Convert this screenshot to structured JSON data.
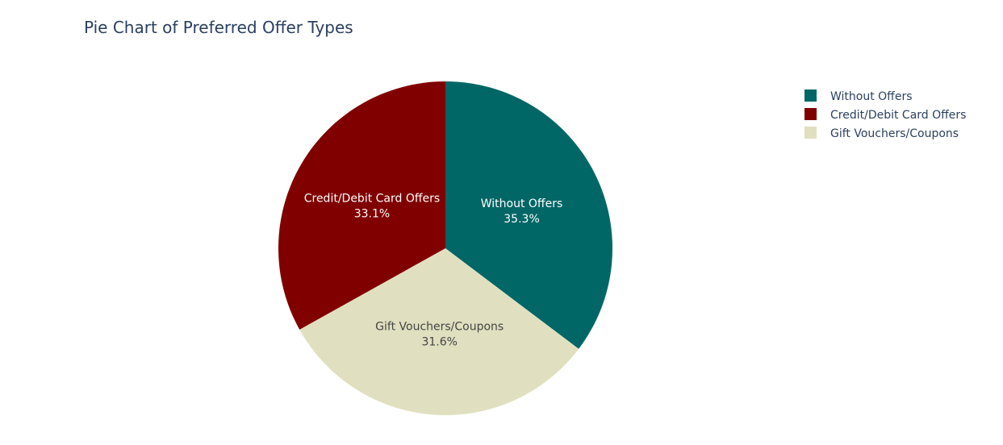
{
  "chart_data": {
    "type": "pie",
    "title": "Pie Chart of Preferred Offer Types",
    "slices": [
      {
        "label": "Without Offers",
        "value": 35.3,
        "percent_label": "35.3%",
        "color": "#006666",
        "text_color": "#ffffff"
      },
      {
        "label": "Gift Vouchers/Coupons",
        "value": 31.6,
        "percent_label": "31.6%",
        "color": "#E0E0C0",
        "text_color": "#444444"
      },
      {
        "label": "Credit/Debit Card Offers",
        "value": 33.1,
        "percent_label": "33.1%",
        "color": "#800000",
        "text_color": "#ffffff"
      }
    ],
    "legend": {
      "placement": "top-right",
      "entries": [
        {
          "label": "Without Offers",
          "color": "#006666"
        },
        {
          "label": "Credit/Debit Card Offers",
          "color": "#800000"
        },
        {
          "label": "Gift Vouchers/Coupons",
          "color": "#E0E0C0"
        }
      ]
    },
    "start_angle": "12 o'clock",
    "direction": "clockwise"
  }
}
